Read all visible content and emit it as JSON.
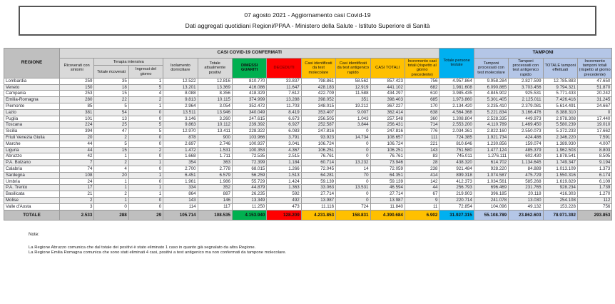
{
  "title": {
    "line1": "07 agosto 2021 - Aggiornamento casi Covid-19",
    "line2": "Dati aggregati quotidiani Regioni/PPAA - Ministero della Salute - Istituto Superiore di Sanità"
  },
  "colors": {
    "header_gray": "#d9d9d9",
    "dark_gray": "#bfbfbf",
    "green": "#00b050",
    "red": "#ff0000",
    "amber": "#ffc000",
    "cyan": "#00b0f0",
    "periwinkle": "#b4c6e7"
  },
  "table": {
    "bands": {
      "confirmed": "CASI COVID-19 CONFERMATI",
      "tamponi": "TAMPONI",
      "terapia_intensiva": "Terapia intensiva"
    },
    "headers": {
      "regione": "REGIONE",
      "ricoverati": "Ricoverati con sintomi",
      "ti_totale": "Totale ricoverati",
      "ti_ingressi": "Ingressi del giorno",
      "isolamento": "Isolamento domiciliare",
      "attualmente_positivi": "Totale attualmente positivi",
      "dimessi_guariti": "DIMESSI GUARITI",
      "deceduti": "DECEDUTI",
      "casi_molecolare": "Casi identificati da test molecolare",
      "casi_antigenico": "Casi identificati da test antigenico rapido",
      "casi_totali": "CASI TOTALI",
      "incremento_casi": "Incremento casi totali (rispetto al giorno precedente)",
      "persone_testate": "Totale persone testate",
      "tamponi_molecolare": "Tamponi processati con test molecolare",
      "tamponi_antigenico": "Tamponi processati con test antigenico rapido",
      "tamponi_totale": "TOTALE tamponi effettuati",
      "incremento_tamponi": "Incremento tamponi totali (rispetto al giorno precedente)"
    },
    "rows": [
      {
        "region": "Lombardia",
        "values": [
          "259",
          "35",
          "1",
          "12.522",
          "12.816",
          "810.770",
          "33.837",
          "798.861",
          "58.562",
          "857.423",
          "756",
          "4.957.864",
          "9.958.284",
          "2.827.599",
          "12.785.883",
          "47.650"
        ]
      },
      {
        "region": "Veneto",
        "values": [
          "150",
          "18",
          "5",
          "13.201",
          "13.369",
          "416.086",
          "11.647",
          "428.183",
          "12.919",
          "441.102",
          "682",
          "1.981.608",
          "6.090.865",
          "3.703.456",
          "9.794.321",
          "51.870"
        ]
      },
      {
        "region": "Campania",
        "values": [
          "253",
          "15",
          "4",
          "8.088",
          "8.356",
          "418.329",
          "7.612",
          "422.709",
          "11.588",
          "434.297",
          "610",
          "3.985.435",
          "4.845.902",
          "925.531",
          "5.771.433",
          "20.242"
        ]
      },
      {
        "region": "Emilia-Romagna",
        "values": [
          "280",
          "22",
          "2",
          "9.813",
          "10.115",
          "374.999",
          "13.288",
          "398.052",
          "351",
          "398.403",
          "685",
          "1.973.860",
          "5.301.405",
          "2.125.011",
          "7.426.416",
          "31.245"
        ]
      },
      {
        "region": "Piemonte",
        "values": [
          "85",
          "5",
          "1",
          "2.964",
          "3.054",
          "352.472",
          "11.703",
          "348.015",
          "19.212",
          "367.227",
          "170",
          "2.134.420",
          "3.235.410",
          "2.379.081",
          "5.614.491",
          "24.667"
        ]
      },
      {
        "region": "Lazio",
        "values": [
          "381",
          "54",
          "0",
          "13.511",
          "13.946",
          "340.049",
          "8.419",
          "353.407",
          "9.007",
          "362.414",
          "638",
          "4.564.368",
          "5.221.834",
          "3.166.476",
          "8.388.310",
          "0"
        ]
      },
      {
        "region": "Puglia",
        "values": [
          "101",
          "13",
          "0",
          "3.146",
          "3.260",
          "247.615",
          "6.673",
          "256.505",
          "1.043",
          "257.548",
          "360",
          "1.308.804",
          "2.528.335",
          "449.973",
          "2.978.308",
          "17.440"
        ]
      },
      {
        "region": "Toscana",
        "values": [
          "224",
          "25",
          "5",
          "9.863",
          "10.112",
          "239.392",
          "6.927",
          "252.587",
          "3.844",
          "256.431",
          "714",
          "2.553.200",
          "4.110.789",
          "1.469.450",
          "5.580.239",
          "19.010"
        ]
      },
      {
        "region": "Sicilia",
        "values": [
          "394",
          "47",
          "5",
          "12.970",
          "13.411",
          "228.322",
          "6.083",
          "247.816",
          "0",
          "247.816",
          "776",
          "2.034.361",
          "2.822.160",
          "2.550.073",
          "5.372.233",
          "17.662"
        ]
      },
      {
        "region": "Friuli Venezia Giulia",
        "values": [
          "20",
          "2",
          "0",
          "878",
          "900",
          "103.966",
          "3.791",
          "93.923",
          "14.734",
          "108.657",
          "111",
          "724.385",
          "1.921.734",
          "424.486",
          "2.346.220",
          "7.591"
        ]
      },
      {
        "region": "Marche",
        "values": [
          "44",
          "5",
          "0",
          "2.697",
          "2.746",
          "100.937",
          "3.041",
          "106.724",
          "0",
          "106.724",
          "221",
          "810.646",
          "1.230.856",
          "159.074",
          "1.389.930",
          "4.007"
        ]
      },
      {
        "region": "Liguria",
        "values": [
          "44",
          "15",
          "2",
          "1.472",
          "1.531",
          "100.353",
          "4.367",
          "106.251",
          "0",
          "106.251",
          "143",
          "751.580",
          "1.477.124",
          "485.379",
          "1.962.503",
          "8.803"
        ]
      },
      {
        "region": "Abruzzo",
        "values": [
          "42",
          "1",
          "0",
          "1.668",
          "1.711",
          "72.535",
          "2.515",
          "76.761",
          "0",
          "76.761",
          "83",
          "745.011",
          "1.276.111",
          "602.430",
          "1.878.541",
          "8.505"
        ]
      },
      {
        "region": "P.A. Bolzano",
        "values": [
          "7",
          "2",
          "1",
          "354",
          "363",
          "72.399",
          "1.184",
          "60.714",
          "13.232",
          "73.946",
          "28",
          "438.320",
          "614.702",
          "1.134.645",
          "1.749.347",
          "9.194"
        ]
      },
      {
        "region": "Calabria",
        "values": [
          "74",
          "4",
          "0",
          "2.700",
          "2.778",
          "68.015",
          "1.266",
          "72.045",
          "14",
          "72.059",
          "238",
          "921.484",
          "928.220",
          "84.889",
          "1.013.109",
          "1.373"
        ]
      },
      {
        "region": "Sardegna",
        "values": [
          "108",
          "20",
          "1",
          "6.451",
          "6.579",
          "56.259",
          "1.513",
          "64.281",
          "70",
          "64.351",
          "414",
          "899.318",
          "1.074.587",
          "475.729",
          "1.550.316",
          "6.174"
        ]
      },
      {
        "region": "Umbria",
        "values": [
          "24",
          "1",
          "0",
          "1.961",
          "1.986",
          "55.729",
          "1.424",
          "59.139",
          "0",
          "59.139",
          "142",
          "412.373",
          "1.034.561",
          "585.268",
          "1.619.829",
          "6.109"
        ]
      },
      {
        "region": "P.A. Trento",
        "values": [
          "17",
          "1",
          "1",
          "334",
          "352",
          "44.879",
          "1.363",
          "33.063",
          "13.531",
          "46.594",
          "44",
          "256.793",
          "696.469",
          "231.765",
          "928.234",
          "1.739"
        ]
      },
      {
        "region": "Basilicata",
        "values": [
          "21",
          "2",
          "1",
          "864",
          "887",
          "26.235",
          "592",
          "27.714",
          "0",
          "27.714",
          "67",
          "219.903",
          "396.185",
          "20.118",
          "416.303",
          "1.270"
        ]
      },
      {
        "region": "Molise",
        "values": [
          "2",
          "1",
          "0",
          "143",
          "146",
          "13.349",
          "492",
          "13.987",
          "0",
          "13.987",
          "9",
          "220.714",
          "241.078",
          "13.030",
          "254.108",
          "112"
        ]
      },
      {
        "region": "Valle d'Aosta",
        "values": [
          "3",
          "0",
          "0",
          "114",
          "117",
          "11.250",
          "473",
          "11.116",
          "724",
          "11.840",
          "11",
          "72.854",
          "104.096",
          "49.132",
          "153.228",
          "756"
        ]
      }
    ],
    "total": {
      "region": "TOTALE",
      "values": [
        "2.533",
        "288",
        "29",
        "105.714",
        "108.535",
        "4.153.940",
        "128.209",
        "4.231.853",
        "158.831",
        "4.390.684",
        "6.902",
        "31.927.315",
        "55.108.789",
        "23.862.603",
        "78.971.392",
        "293.853"
      ]
    }
  },
  "notes": {
    "heading": "Note:",
    "items": [
      "La Regione Abruzzo comunica che dal totale dei positivi è stato eliminato 1 caso in quanto già segnalato da altra Regione.",
      "La Regione Emilia Romagna comunica che sono stati eliminati 4 casi, positivi a test antigenico ma non confermati da tampone molecolare."
    ]
  }
}
